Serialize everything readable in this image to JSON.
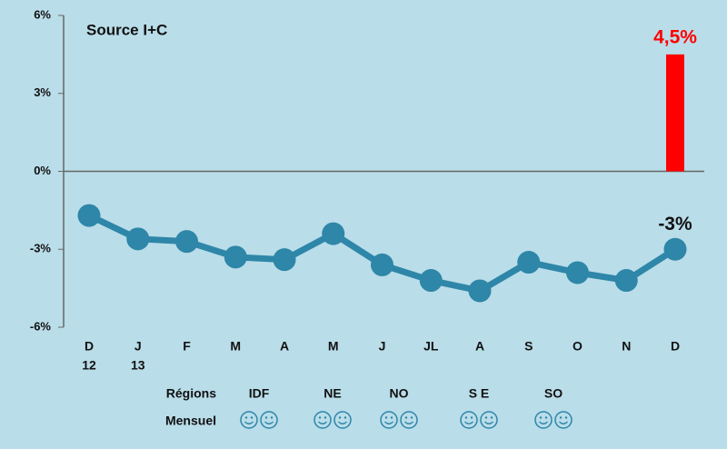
{
  "chart_data": {
    "type": "line",
    "title": "Source I+C",
    "categories": [
      "D",
      "J",
      "F",
      "M",
      "A",
      "M",
      "J",
      "JL",
      "A",
      "S",
      "O",
      "N",
      "D"
    ],
    "sublabels": [
      "12",
      "13",
      null,
      null,
      null,
      null,
      null,
      null,
      null,
      null,
      null,
      null,
      null
    ],
    "ylim": [
      -6,
      6
    ],
    "yticks": [
      {
        "value": -6,
        "label": "-6%"
      },
      {
        "value": -3,
        "label": "-3%"
      },
      {
        "value": 0,
        "label": "0%"
      },
      {
        "value": 3,
        "label": "3%"
      },
      {
        "value": 6,
        "label": "6%"
      }
    ],
    "series": [
      {
        "type": "line",
        "color": "#2e86a8",
        "values": [
          -1.7,
          -2.6,
          -2.7,
          -3.3,
          -3.4,
          -2.4,
          -3.6,
          -4.2,
          -4.6,
          -3.5,
          -3.9,
          -4.2,
          -3.0
        ],
        "value_labels": [
          null,
          null,
          null,
          null,
          null,
          null,
          null,
          null,
          null,
          null,
          null,
          null,
          "-3%"
        ]
      },
      {
        "type": "bar",
        "color": "#ff0000",
        "values": [
          null,
          null,
          null,
          null,
          null,
          null,
          null,
          null,
          null,
          null,
          null,
          null,
          4.5
        ],
        "value_labels": [
          null,
          null,
          null,
          null,
          null,
          null,
          null,
          null,
          null,
          null,
          null,
          null,
          "4,5%"
        ]
      }
    ],
    "regions_label": "Régions",
    "monthly_label": "Mensuel",
    "regions": [
      "IDF",
      "NE",
      "NO",
      "S E",
      "SO"
    ]
  }
}
